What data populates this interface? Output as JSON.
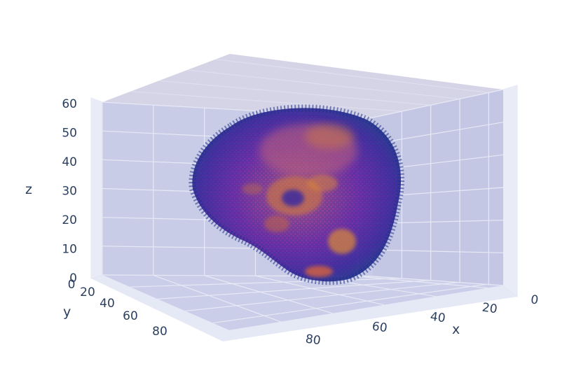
{
  "chart_data": {
    "type": "scatter3d",
    "subject": "brain volume rendered as translucent point cloud",
    "axes": {
      "x": {
        "title": "x",
        "range": [
          0,
          100
        ],
        "ticks": [
          "0",
          "20",
          "40",
          "60",
          "80"
        ]
      },
      "y": {
        "title": "y",
        "range": [
          0,
          100
        ],
        "ticks": [
          "0",
          "20",
          "40",
          "60",
          "80"
        ]
      },
      "z": {
        "title": "z",
        "range": [
          0,
          62
        ],
        "ticks": [
          "0",
          "10",
          "20",
          "30",
          "40",
          "50",
          "60"
        ]
      }
    },
    "grid": true,
    "colorscale": "plasma",
    "colors": {
      "pane": "#c6c9e5",
      "top_pane": "#d3d2e6",
      "floor": "#c7cbe7",
      "grid": "#e7e9f5",
      "outer": "#1f2f8a",
      "mid": "#6a1fa2",
      "inner": "#cc6b3c",
      "hot": "#e38d2c"
    }
  }
}
